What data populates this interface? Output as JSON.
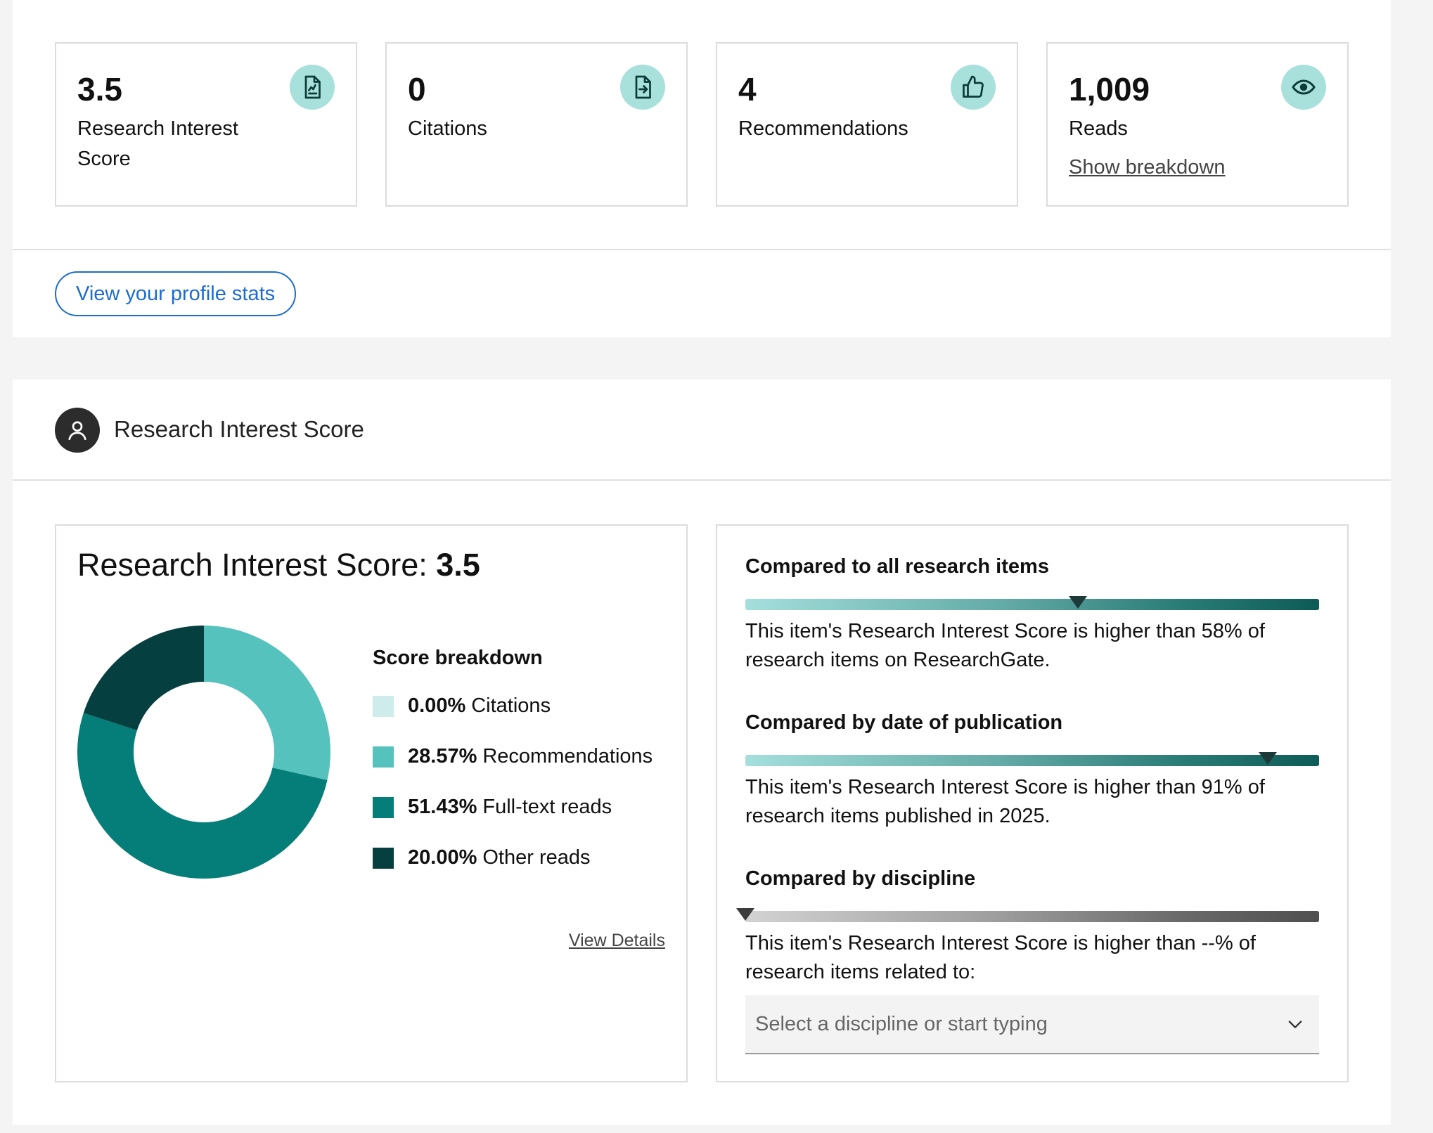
{
  "stats": [
    {
      "value": "3.5",
      "label": "Research Interest Score",
      "icon": "file-chart-icon"
    },
    {
      "value": "0",
      "label": "Citations",
      "icon": "file-quote-icon"
    },
    {
      "value": "4",
      "label": "Recommendations",
      "icon": "thumbs-up-icon"
    },
    {
      "value": "1,009",
      "label": "Reads",
      "icon": "eye-icon",
      "link": "Show breakdown"
    }
  ],
  "profile_button": "View your profile stats",
  "section": {
    "title": "Research Interest Score",
    "icon": "user-icon"
  },
  "score": {
    "heading_prefix": "Research Interest Score: ",
    "heading_value": "3.5",
    "breakdown_title": "Score breakdown",
    "view_details": "View Details"
  },
  "chart_data": {
    "type": "pie",
    "title": "Score breakdown",
    "categories": [
      "Citations",
      "Recommendations",
      "Full-text reads",
      "Other reads"
    ],
    "values": [
      0.0,
      28.57,
      51.43,
      20.0
    ],
    "value_labels": [
      "0.00%",
      "28.57%",
      "51.43%",
      "20.00%"
    ],
    "colors": [
      "#cdeceb",
      "#55c2bd",
      "#057d78",
      "#063f3f"
    ],
    "donut": true
  },
  "comparisons": [
    {
      "title": "Compared to all research items",
      "percentile": 58,
      "text": "This item's Research Interest Score is higher than 58% of research items on ResearchGate.",
      "style": "teal"
    },
    {
      "title": "Compared by date of publication",
      "percentile": 91,
      "text": "This item's Research Interest Score is higher than 91% of research items published in 2025.",
      "style": "teal"
    },
    {
      "title": "Compared by discipline",
      "percentile": 0,
      "text": "This item's Research Interest Score is higher than --% of research items related to:",
      "style": "gray"
    }
  ],
  "discipline_select": {
    "placeholder": "Select a discipline or start typing",
    "icon": "chevron-down-icon"
  }
}
